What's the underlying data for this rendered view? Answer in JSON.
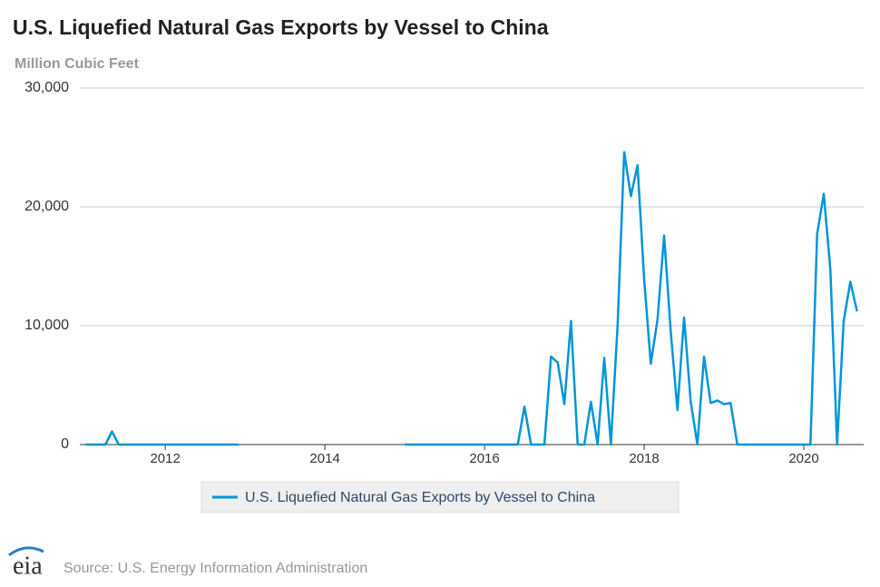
{
  "chart_data": {
    "type": "line",
    "title": "U.S. Liquefied Natural Gas Exports by Vessel to China",
    "subtitle": "Million Cubic Feet",
    "source": "Source: U.S. Energy Information Administration",
    "logo": "eia",
    "x": [
      2011,
      2011.083,
      2011.167,
      2011.25,
      2011.333,
      2011.417,
      2011.5,
      2011.583,
      2011.667,
      2011.75,
      2011.833,
      2011.917,
      2012,
      2012.083,
      2012.167,
      2012.25,
      2012.333,
      2012.417,
      2012.5,
      2012.583,
      2012.667,
      2012.75,
      2012.833,
      2012.917,
      2013,
      2013.083,
      2013.167,
      2013.25,
      2013.333,
      2013.417,
      2013.5,
      2013.583,
      2013.667,
      2013.75,
      2013.833,
      2013.917,
      2014,
      2014.083,
      2014.167,
      2014.25,
      2014.333,
      2014.417,
      2014.5,
      2014.583,
      2014.667,
      2014.75,
      2014.833,
      2014.917,
      2015,
      2015.083,
      2015.167,
      2015.25,
      2015.333,
      2015.417,
      2015.5,
      2015.583,
      2015.667,
      2015.75,
      2015.833,
      2015.917,
      2016,
      2016.083,
      2016.167,
      2016.25,
      2016.333,
      2016.417,
      2016.5,
      2016.583,
      2016.667,
      2016.75,
      2016.833,
      2016.917,
      2017,
      2017.083,
      2017.167,
      2017.25,
      2017.333,
      2017.417,
      2017.5,
      2017.583,
      2017.667,
      2017.75,
      2017.833,
      2017.917,
      2018,
      2018.083,
      2018.167,
      2018.25,
      2018.333,
      2018.417,
      2018.5,
      2018.583,
      2018.667,
      2018.75,
      2018.833,
      2018.917,
      2019,
      2019.083,
      2019.167,
      2019.25,
      2019.333,
      2019.417,
      2019.5,
      2019.583,
      2019.667,
      2019.75,
      2019.833,
      2019.917,
      2020,
      2020.083,
      2020.167,
      2020.25,
      2020.333,
      2020.417,
      2020.5,
      2020.583,
      2020.667
    ],
    "series": [
      {
        "name": "U.S. Liquefied Natural Gas Exports by Vessel to China",
        "color": "#0096d7",
        "values": [
          0,
          0,
          0,
          0,
          1100,
          0,
          0,
          0,
          0,
          0,
          0,
          0,
          0,
          0,
          0,
          0,
          0,
          0,
          0,
          0,
          0,
          0,
          0,
          0,
          null,
          null,
          null,
          null,
          null,
          null,
          null,
          null,
          null,
          null,
          null,
          null,
          null,
          null,
          null,
          null,
          null,
          null,
          null,
          null,
          null,
          null,
          null,
          null,
          0,
          0,
          0,
          0,
          0,
          0,
          0,
          0,
          0,
          0,
          0,
          0,
          0,
          0,
          0,
          0,
          0,
          0,
          3200,
          0,
          0,
          0,
          7400,
          6900,
          3400,
          10400,
          0,
          0,
          3600,
          0,
          7300,
          0,
          10000,
          24600,
          20900,
          23500,
          13900,
          6800,
          10500,
          17600,
          9500,
          2900,
          10700,
          3600,
          0,
          7400,
          3500,
          3700,
          3400,
          3500,
          0,
          0,
          0,
          0,
          0,
          0,
          0,
          0,
          0,
          0,
          0,
          0,
          17700,
          21100,
          14700,
          0,
          10400,
          13700,
          11200
        ]
      }
    ],
    "xlim": [
      2010.93,
      2020.75
    ],
    "xticks": [
      2012,
      2014,
      2016,
      2018,
      2020
    ],
    "ylim": [
      0,
      30000
    ],
    "yticks": [
      0,
      {
        "value": 10000,
        "label": "10,000"
      },
      {
        "value": 20000,
        "label": "20,000"
      },
      {
        "value": 30000,
        "label": "30,000"
      }
    ],
    "grid": true
  }
}
